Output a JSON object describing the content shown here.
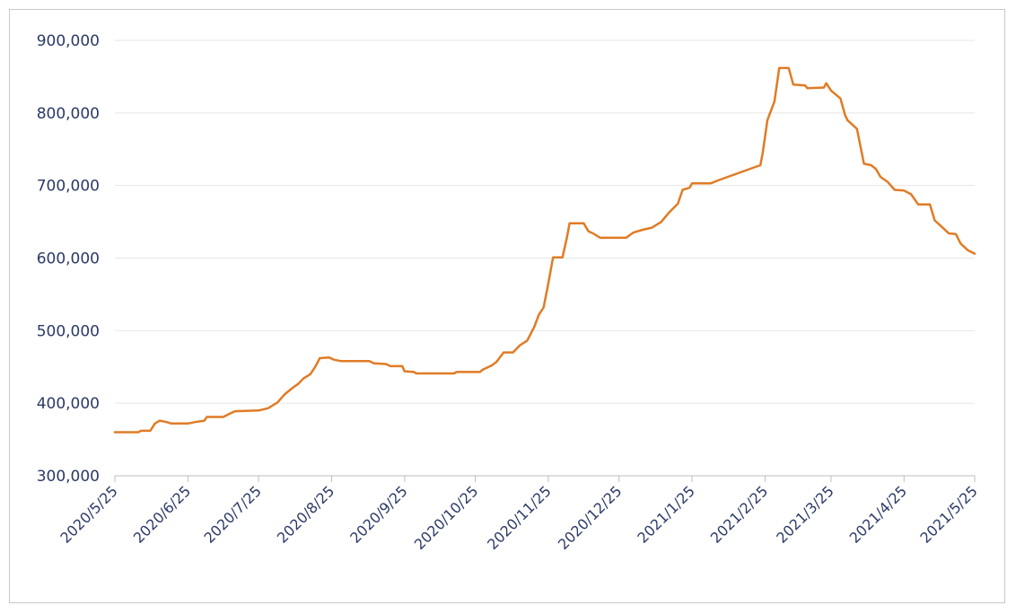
{
  "chart_data": {
    "type": "line",
    "title": "",
    "xlabel": "",
    "ylabel": "",
    "ylim": [
      300000,
      900000
    ],
    "grid": true,
    "legend": "none",
    "colors": {
      "line": "#e07b25",
      "grid": "#e6e6e6",
      "text": "#2b3a67",
      "axis": "#bdbdbd"
    },
    "y_ticks": [
      {
        "value": 300000,
        "label": "300,000"
      },
      {
        "value": 400000,
        "label": "400,000"
      },
      {
        "value": 500000,
        "label": "500,000"
      },
      {
        "value": 600000,
        "label": "600,000"
      },
      {
        "value": 700000,
        "label": "700,000"
      },
      {
        "value": 800000,
        "label": "800,000"
      },
      {
        "value": 900000,
        "label": "900,000"
      }
    ],
    "x_ticks": [
      {
        "date": "2020-05-25",
        "label": "2020/5/25"
      },
      {
        "date": "2020-06-25",
        "label": "2020/6/25"
      },
      {
        "date": "2020-07-25",
        "label": "2020/7/25"
      },
      {
        "date": "2020-08-25",
        "label": "2020/8/25"
      },
      {
        "date": "2020-09-25",
        "label": "2020/9/25"
      },
      {
        "date": "2020-10-25",
        "label": "2020/10/25"
      },
      {
        "date": "2020-11-25",
        "label": "2020/11/25"
      },
      {
        "date": "2020-12-25",
        "label": "2020/12/25"
      },
      {
        "date": "2021-01-25",
        "label": "2021/1/25"
      },
      {
        "date": "2021-02-25",
        "label": "2021/2/25"
      },
      {
        "date": "2021-03-25",
        "label": "2021/3/25"
      },
      {
        "date": "2021-04-25",
        "label": "2021/4/25"
      },
      {
        "date": "2021-05-25",
        "label": "2021/5/25"
      }
    ],
    "series": [
      {
        "points": [
          [
            "2020-05-25",
            360000
          ],
          [
            "2020-06-01",
            360000
          ],
          [
            "2020-06-04",
            360000
          ],
          [
            "2020-06-05",
            362000
          ],
          [
            "2020-06-09",
            362000
          ],
          [
            "2020-06-11",
            372000
          ],
          [
            "2020-06-13",
            376000
          ],
          [
            "2020-06-16",
            374000
          ],
          [
            "2020-06-18",
            372000
          ],
          [
            "2020-06-25",
            372000
          ],
          [
            "2020-06-28",
            374000
          ],
          [
            "2020-07-02",
            376000
          ],
          [
            "2020-07-03",
            381000
          ],
          [
            "2020-07-10",
            381000
          ],
          [
            "2020-07-13",
            386000
          ],
          [
            "2020-07-15",
            389000
          ],
          [
            "2020-07-25",
            390000
          ],
          [
            "2020-07-29",
            393000
          ],
          [
            "2020-08-02",
            401000
          ],
          [
            "2020-08-05",
            412000
          ],
          [
            "2020-08-08",
            420000
          ],
          [
            "2020-08-11",
            427000
          ],
          [
            "2020-08-13",
            434000
          ],
          [
            "2020-08-16",
            440000
          ],
          [
            "2020-08-18",
            450000
          ],
          [
            "2020-08-20",
            462000
          ],
          [
            "2020-08-24",
            463000
          ],
          [
            "2020-08-26",
            460000
          ],
          [
            "2020-08-29",
            458000
          ],
          [
            "2020-09-01",
            458000
          ],
          [
            "2020-09-10",
            458000
          ],
          [
            "2020-09-12",
            455000
          ],
          [
            "2020-09-17",
            454000
          ],
          [
            "2020-09-19",
            451000
          ],
          [
            "2020-09-24",
            451000
          ],
          [
            "2020-09-25",
            444000
          ],
          [
            "2020-09-29",
            443000
          ],
          [
            "2020-09-30",
            441000
          ],
          [
            "2020-10-10",
            441000
          ],
          [
            "2020-10-16",
            441000
          ],
          [
            "2020-10-17",
            443000
          ],
          [
            "2020-10-27",
            443000
          ],
          [
            "2020-10-28",
            446000
          ],
          [
            "2020-11-01",
            452000
          ],
          [
            "2020-11-03",
            457000
          ],
          [
            "2020-11-06",
            470000
          ],
          [
            "2020-11-10",
            470000
          ],
          [
            "2020-11-13",
            480000
          ],
          [
            "2020-11-16",
            486000
          ],
          [
            "2020-11-19",
            505000
          ],
          [
            "2020-11-21",
            522000
          ],
          [
            "2020-11-23",
            532000
          ],
          [
            "2020-11-25",
            565000
          ],
          [
            "2020-11-27",
            601000
          ],
          [
            "2020-12-01",
            601000
          ],
          [
            "2020-12-03",
            630000
          ],
          [
            "2020-12-04",
            648000
          ],
          [
            "2020-12-10",
            648000
          ],
          [
            "2020-12-12",
            637000
          ],
          [
            "2020-12-14",
            634000
          ],
          [
            "2020-12-17",
            628000
          ],
          [
            "2020-12-25",
            628000
          ],
          [
            "2020-12-28",
            628000
          ],
          [
            "2020-12-31",
            635000
          ],
          [
            "2021-01-04",
            639000
          ],
          [
            "2021-01-08",
            642000
          ],
          [
            "2021-01-12",
            650000
          ],
          [
            "2021-01-15",
            662000
          ],
          [
            "2021-01-19",
            675000
          ],
          [
            "2021-01-21",
            694000
          ],
          [
            "2021-01-24",
            697000
          ],
          [
            "2021-01-25",
            703000
          ],
          [
            "2021-01-31",
            703000
          ],
          [
            "2021-02-02",
            703000
          ],
          [
            "2021-02-05",
            707000
          ],
          [
            "2021-02-23",
            728000
          ],
          [
            "2021-02-24",
            745000
          ],
          [
            "2021-02-26",
            790000
          ],
          [
            "2021-03-01",
            816000
          ],
          [
            "2021-03-03",
            862000
          ],
          [
            "2021-03-07",
            862000
          ],
          [
            "2021-03-09",
            839000
          ],
          [
            "2021-03-14",
            838000
          ],
          [
            "2021-03-15",
            834000
          ],
          [
            "2021-03-22",
            835000
          ],
          [
            "2021-03-23",
            841000
          ],
          [
            "2021-03-25",
            831000
          ],
          [
            "2021-03-29",
            820000
          ],
          [
            "2021-03-31",
            797000
          ],
          [
            "2021-04-01",
            790000
          ],
          [
            "2021-04-05",
            778000
          ],
          [
            "2021-04-08",
            730000
          ],
          [
            "2021-04-11",
            728000
          ],
          [
            "2021-04-13",
            723000
          ],
          [
            "2021-04-15",
            712000
          ],
          [
            "2021-04-18",
            705000
          ],
          [
            "2021-04-21",
            694000
          ],
          [
            "2021-04-25",
            693000
          ],
          [
            "2021-04-28",
            688000
          ],
          [
            "2021-05-01",
            674000
          ],
          [
            "2021-05-06",
            674000
          ],
          [
            "2021-05-08",
            652000
          ],
          [
            "2021-05-11",
            643000
          ],
          [
            "2021-05-14",
            634000
          ],
          [
            "2021-05-17",
            633000
          ],
          [
            "2021-05-19",
            620000
          ],
          [
            "2021-05-22",
            611000
          ],
          [
            "2021-05-25",
            606000
          ]
        ]
      }
    ]
  }
}
